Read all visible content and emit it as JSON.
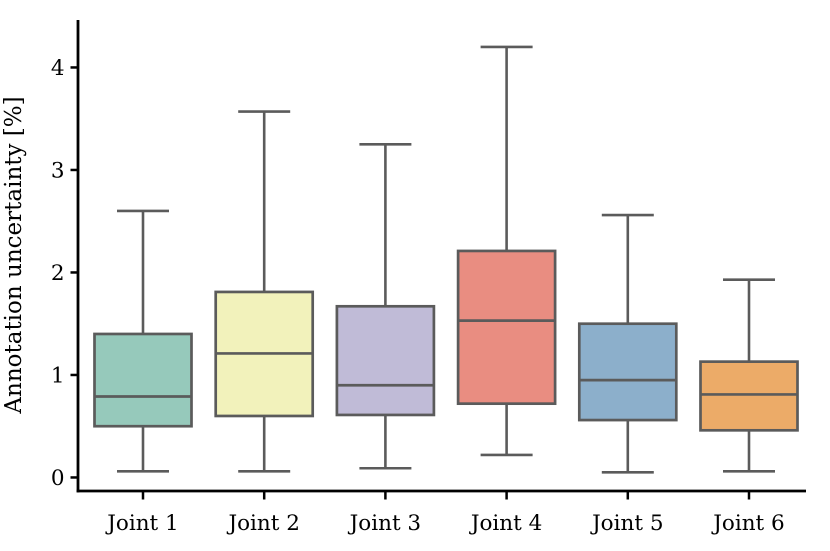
{
  "figure": {
    "background": "#ffffff"
  },
  "chart_data": {
    "type": "box",
    "title": "",
    "xlabel": "",
    "ylabel": "Annotation uncertainty [%]",
    "categories": [
      "Joint 1",
      "Joint 2",
      "Joint 3",
      "Joint 4",
      "Joint 5",
      "Joint 6"
    ],
    "yticks": [
      0,
      1,
      2,
      3,
      4
    ],
    "ylim": [
      -0.132,
      4.463
    ],
    "grid": false,
    "legend": false,
    "series": [
      {
        "name": "Joint 1",
        "whislo": 0.06,
        "q1": 0.5,
        "med": 0.79,
        "q3": 1.4,
        "whishi": 2.6,
        "color": "#96c9bb"
      },
      {
        "name": "Joint 2",
        "whislo": 0.06,
        "q1": 0.6,
        "med": 1.21,
        "q3": 1.81,
        "whishi": 3.57,
        "color": "#f2f2bb"
      },
      {
        "name": "Joint 3",
        "whislo": 0.09,
        "q1": 0.61,
        "med": 0.9,
        "q3": 1.67,
        "whishi": 3.25,
        "color": "#c0bbd7"
      },
      {
        "name": "Joint 4",
        "whislo": 0.22,
        "q1": 0.72,
        "med": 1.53,
        "q3": 2.21,
        "whishi": 4.2,
        "color": "#e98d81"
      },
      {
        "name": "Joint 5",
        "whislo": 0.05,
        "q1": 0.56,
        "med": 0.95,
        "q3": 1.5,
        "whishi": 2.56,
        "color": "#8cafcb"
      },
      {
        "name": "Joint 6",
        "whislo": 0.06,
        "q1": 0.46,
        "med": 0.81,
        "q3": 1.13,
        "whishi": 1.93,
        "color": "#ecab68"
      }
    ],
    "box_line_color": "#5b5b5b",
    "axis_color": "#000000"
  }
}
